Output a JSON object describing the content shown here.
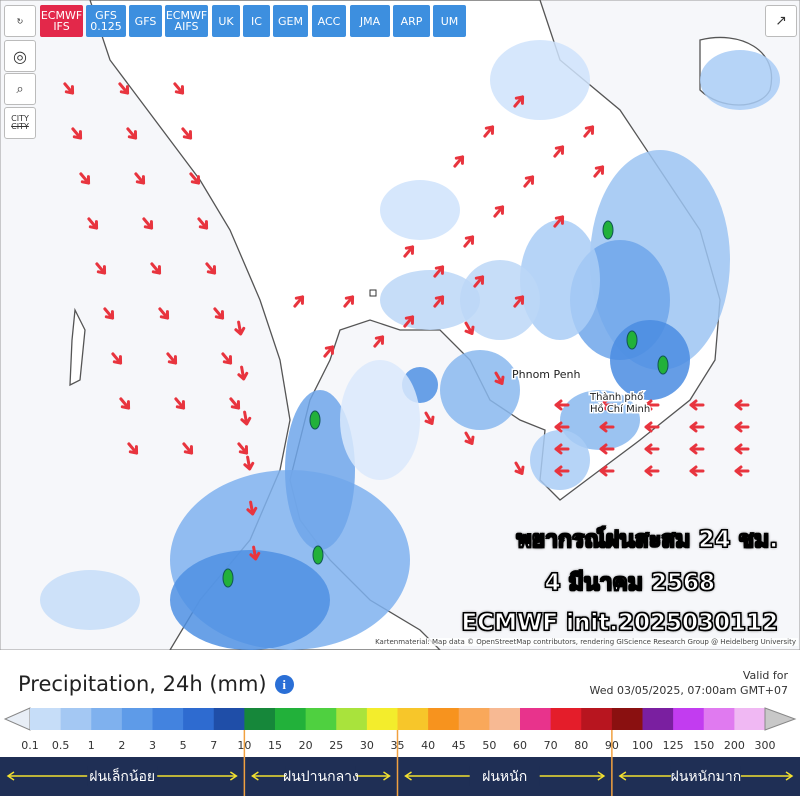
{
  "toolbar": {
    "models": [
      "ECMWF IFS",
      "GFS 0.125",
      "GFS",
      "ECMWF AIFS",
      "UK",
      "IC",
      "GEM",
      "ACC",
      "JMA",
      "ARP",
      "UM"
    ]
  },
  "side_tools": {
    "city": "CITY"
  },
  "map": {
    "places": [
      "Phnom Penh",
      [
        "Thành phố",
        "Hồ Chí Minh"
      ]
    ],
    "attribution": "Kartenmaterial: Map data © OpenStreetMap contributors, rendering GIScience Research Group @ Heidelberg University",
    "overlay": [
      "พยากรณ์ฝนสะสม 24 ชม.",
      "4 มีนาคม 2568",
      "ECMWF init.2025030112"
    ]
  },
  "legend": {
    "title": "Precipitation, 24h (mm)",
    "valid_label": "Valid for",
    "valid_time": "Wed 03/05/2025, 07:00am GMT+07",
    "scale": [
      0.1,
      0.5,
      1,
      2,
      3,
      5,
      7,
      10,
      15,
      20,
      25,
      30,
      35,
      40,
      45,
      50,
      60,
      70,
      80,
      90,
      100,
      125,
      150,
      200,
      300
    ],
    "colors": [
      "#e8eef6",
      "#c6ddf8",
      "#a4c8f3",
      "#7fb1ee",
      "#5e9be8",
      "#4383df",
      "#2e6bd0",
      "#1f4ea8",
      "#16873a",
      "#22b13a",
      "#4fd040",
      "#a9e33c",
      "#f3ed2c",
      "#f7c62a",
      "#f7931e",
      "#f9a85a",
      "#f7b993",
      "#e8338c",
      "#e41d2a",
      "#b8151f",
      "#8a1010",
      "#7a1fa0",
      "#c23cf0",
      "#e07af0",
      "#f0b8f3",
      "#f7e9f7",
      "#c8c8c8"
    ],
    "categories": [
      "ฝนเล็กน้อย",
      "ฝนปานกลาง",
      "ฝนหนัก",
      "ฝนหนักมาก"
    ]
  }
}
